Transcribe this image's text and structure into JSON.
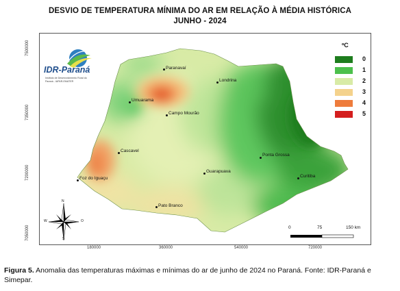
{
  "title_line1": "DESVIO DE TEMPERATURA MÍNIMA DO AR EM RELAÇÃO À MÉDIA HISTÓRICA",
  "title_line2": "JUNHO - 2024",
  "logo": {
    "name": "IDR-Paraná",
    "subtitle": "Instituto de Desenvolvimento Rural do Paraná - IAPAR-EMATER"
  },
  "y_ticks": [
    "7500000",
    "7350000",
    "7200000",
    "7050000"
  ],
  "x_ticks": [
    "180000",
    "360000",
    "540000",
    "720000"
  ],
  "legend": {
    "unit": "ºC",
    "items": [
      {
        "label": "0",
        "color": "#1e7d1e"
      },
      {
        "label": "1",
        "color": "#4cc04c"
      },
      {
        "label": "2",
        "color": "#d8eba6"
      },
      {
        "label": "3",
        "color": "#f4d28c"
      },
      {
        "label": "4",
        "color": "#ee7c3c"
      },
      {
        "label": "5",
        "color": "#d41e1e"
      }
    ]
  },
  "cities": [
    {
      "id": "paranavai",
      "name": "Paranavaí"
    },
    {
      "id": "londrina",
      "name": "Londrina"
    },
    {
      "id": "umuarama",
      "name": "Umuarama"
    },
    {
      "id": "campo-mourao",
      "name": "Campo Mourão"
    },
    {
      "id": "cascavel",
      "name": "Cascavel"
    },
    {
      "id": "ponta-grossa",
      "name": "Ponta Grossa"
    },
    {
      "id": "guarapuava",
      "name": "Guarapuava"
    },
    {
      "id": "curitiba",
      "name": "Curitiba"
    },
    {
      "id": "foz",
      "name": "Foz do Iguaçu"
    },
    {
      "id": "pato-branco",
      "name": "Pato Branco"
    }
  ],
  "scale_bar": {
    "labels": [
      "0",
      "75",
      "150 km"
    ]
  },
  "compass": {
    "n": "N",
    "s": "S",
    "e": "O",
    "w": "W"
  },
  "caption": {
    "label": "Figura 5.",
    "text": " Anomalia das temperaturas máximas e mínimas do ar de junho de 2024 no Paraná. Fonte: IDR-Paraná e Simepar."
  }
}
